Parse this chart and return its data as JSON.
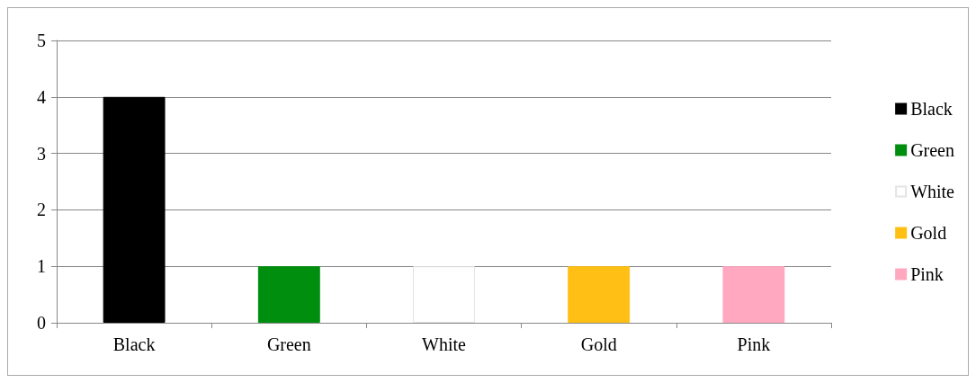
{
  "chart_data": {
    "type": "bar",
    "categories": [
      "Black",
      "Green",
      "White",
      "Gold",
      "Pink"
    ],
    "series": [
      {
        "name": "Black",
        "color": "#000000",
        "values": [
          4,
          null,
          null,
          null,
          null
        ]
      },
      {
        "name": "Green",
        "color": "#008e0f",
        "values": [
          null,
          1,
          null,
          null,
          null
        ]
      },
      {
        "name": "White",
        "color": "#ffffff",
        "values": [
          null,
          null,
          1,
          null,
          null
        ]
      },
      {
        "name": "Gold",
        "color": "#ffbf14",
        "values": [
          null,
          null,
          null,
          1,
          null
        ]
      },
      {
        "name": "Pink",
        "color": "#ffa8c0",
        "values": [
          null,
          null,
          null,
          null,
          1
        ]
      }
    ],
    "stacked": true,
    "ylim": [
      0,
      5
    ],
    "yticks": [
      0,
      1,
      2,
      3,
      4,
      5
    ],
    "grid": "y",
    "legend": "right"
  }
}
